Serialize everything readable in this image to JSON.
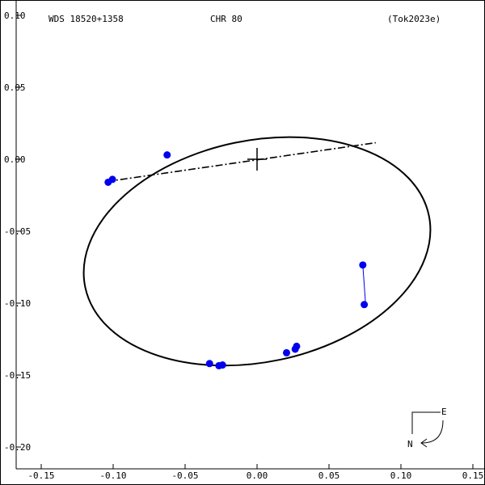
{
  "header": {
    "left": "WDS 18520+1358",
    "center": "CHR  80",
    "right": "(Tok2023e)"
  },
  "compass": {
    "east_label": "E",
    "north_label": "N"
  },
  "chart_data": {
    "type": "scatter",
    "title": "",
    "xlabel": "",
    "ylabel": "",
    "xlim": [
      -0.15,
      0.15
    ],
    "ylim": [
      -0.21,
      0.1
    ],
    "x_ticks": [
      -0.15,
      -0.1,
      -0.05,
      0.0,
      0.05,
      0.1,
      0.15
    ],
    "x_tick_labels": [
      "-0.15",
      "-0.10",
      "-0.05",
      "0.00",
      "0.05",
      "0.10",
      "0.15"
    ],
    "y_ticks": [
      0.1,
      0.05,
      0.0,
      -0.05,
      -0.1,
      -0.15,
      -0.2
    ],
    "y_tick_labels": [
      "0.10",
      "0.05",
      "0.00",
      "-0.05",
      "-0.10",
      "-0.15",
      "-0.20"
    ],
    "grid": false,
    "primary": {
      "x": 0.0,
      "y": 0.0
    },
    "orbit": {
      "center": [
        0.0,
        -0.064
      ],
      "semi_axis_a": 0.122,
      "semi_axis_b": 0.077,
      "tilt_deg": 11.8
    },
    "line_of_nodes": [
      {
        "x": -0.1045,
        "y": -0.0155
      },
      {
        "x": 0.0825,
        "y": 0.0115
      }
    ],
    "observations": [
      {
        "x": -0.1035,
        "y": -0.016
      },
      {
        "x": -0.1005,
        "y": -0.014
      },
      {
        "x": -0.0625,
        "y": 0.003
      },
      {
        "x": -0.033,
        "y": -0.142
      },
      {
        "x": -0.0265,
        "y": -0.1435
      },
      {
        "x": -0.024,
        "y": -0.143
      },
      {
        "x": 0.0205,
        "y": -0.1345
      },
      {
        "x": 0.0265,
        "y": -0.132
      },
      {
        "x": 0.0275,
        "y": -0.13
      },
      {
        "x": 0.0745,
        "y": -0.101
      },
      {
        "x": 0.0735,
        "y": -0.0735
      }
    ],
    "residuals": [
      {
        "from": {
          "x": 0.0735,
          "y": -0.0735
        },
        "to": {
          "x": 0.0755,
          "y": -0.1015
        }
      }
    ],
    "colors": {
      "observation": "#0000ee",
      "orbit": "#000000",
      "axes": "#000000"
    }
  }
}
